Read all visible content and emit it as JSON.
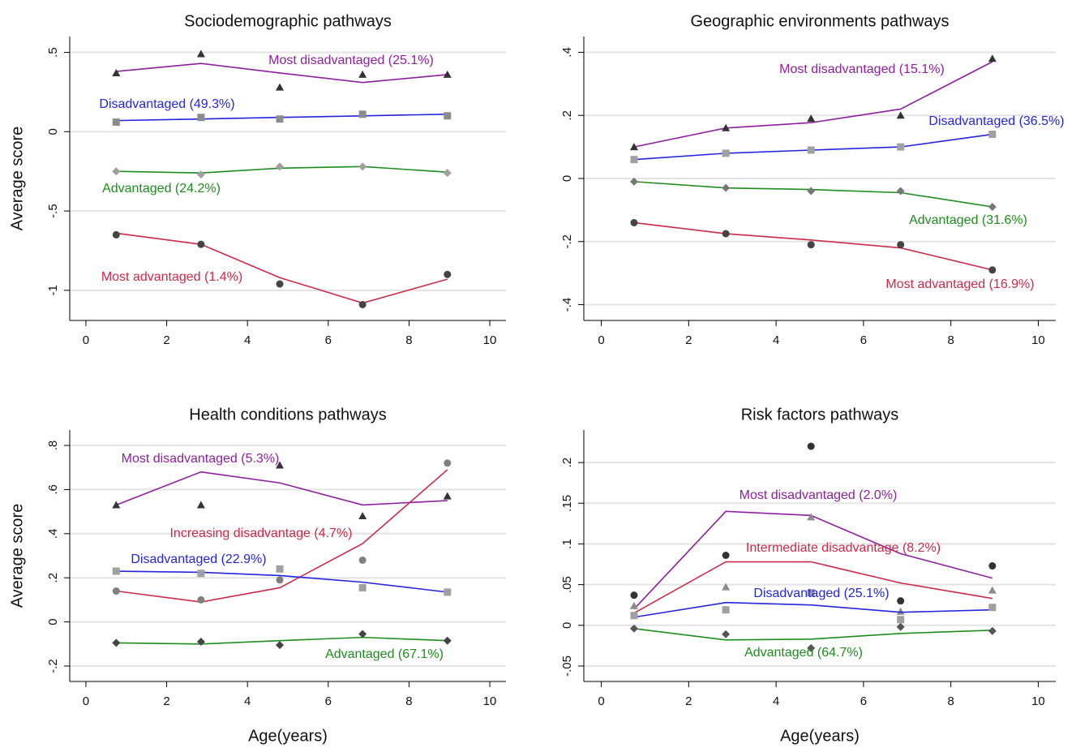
{
  "chart_data": [
    {
      "type": "line",
      "title": "Sociodemographic pathways",
      "ylabel": "Average score",
      "x": [
        0.75,
        2.85,
        4.8,
        6.85,
        8.95
      ],
      "xlim": [
        -0.4,
        10.4
      ],
      "xticks": [
        0,
        2,
        4,
        6,
        8,
        10
      ],
      "ylim": [
        -1.19,
        0.6
      ],
      "yticks": [
        {
          "value": 0.5,
          "label": ".5"
        },
        0,
        {
          "value": -0.5,
          "label": "-.5"
        },
        -1
      ],
      "grid": true,
      "series": [
        {
          "name": "Most disadvantaged (25.1%)",
          "color": "#8e1f9e",
          "values": [
            0.38,
            0.43,
            0.37,
            0.31,
            0.36
          ],
          "observed": [
            0.37,
            0.49,
            0.28,
            0.36,
            0.36
          ],
          "marker": "triangle",
          "marker_color": "#333333"
        },
        {
          "name": "Disadvantaged (49.3%)",
          "color": "#2424e0",
          "values": [
            0.07,
            0.08,
            0.09,
            0.1,
            0.11
          ],
          "observed": [
            0.06,
            0.09,
            0.08,
            0.11,
            0.1
          ],
          "marker": "square",
          "marker_color": "#8c8c8c"
        },
        {
          "name": "Advantaged (24.2%)",
          "color": "#1e8c1e",
          "values": [
            -0.25,
            -0.26,
            -0.23,
            -0.22,
            -0.255
          ],
          "observed": [
            -0.25,
            -0.27,
            -0.22,
            -0.22,
            -0.26
          ],
          "marker": "diamond",
          "marker_color": "#a0a0a0"
        },
        {
          "name": "Most advantaged (1.4%)",
          "color": "#cc2a4a",
          "values": [
            -0.64,
            -0.71,
            -0.92,
            -1.08,
            -0.93
          ],
          "observed": [
            -0.65,
            -0.71,
            -0.96,
            -1.09,
            -0.9
          ],
          "marker": "circle",
          "marker_color": "#444444"
        }
      ]
    },
    {
      "type": "line",
      "title": "Geographic environments pathways",
      "x": [
        0.75,
        2.85,
        4.8,
        6.85,
        8.95
      ],
      "xlim": [
        -0.4,
        10.4
      ],
      "xticks": [
        0,
        2,
        4,
        6,
        8,
        10
      ],
      "ylim": [
        -0.45,
        0.45
      ],
      "yticks": [
        {
          "value": 0.4,
          "label": ".4"
        },
        {
          "value": 0.2,
          "label": ".2"
        },
        0,
        {
          "value": -0.2,
          "label": "-.2"
        },
        {
          "value": -0.4,
          "label": "-.4"
        }
      ],
      "grid": true,
      "series": [
        {
          "name": "Most disadvantaged (15.1%)",
          "color": "#8e1f9e",
          "values": [
            0.1,
            0.16,
            0.177,
            0.22,
            0.37
          ],
          "observed": [
            0.1,
            0.16,
            0.19,
            0.2,
            0.38
          ],
          "marker": "triangle",
          "marker_color": "#333333"
        },
        {
          "name": "Disadvantaged (36.5%)",
          "color": "#2424e0",
          "values": [
            0.06,
            0.08,
            0.09,
            0.1,
            0.14
          ],
          "observed": [
            0.06,
            0.08,
            0.09,
            0.1,
            0.14
          ],
          "marker": "square",
          "marker_color": "#a0a0a0"
        },
        {
          "name": "Advantaged (31.6%)",
          "color": "#1e8c1e",
          "values": [
            -0.01,
            -0.03,
            -0.035,
            -0.045,
            -0.09
          ],
          "observed": [
            -0.01,
            -0.03,
            -0.04,
            -0.04,
            -0.09
          ],
          "marker": "diamond",
          "marker_color": "#777777"
        },
        {
          "name": "Most advantaged (16.9%)",
          "color": "#cc2a4a",
          "values": [
            -0.14,
            -0.175,
            -0.195,
            -0.22,
            -0.29
          ],
          "observed": [
            -0.14,
            -0.175,
            -0.21,
            -0.21,
            -0.29
          ],
          "marker": "circle",
          "marker_color": "#444444"
        }
      ]
    },
    {
      "type": "line",
      "title": "Health conditions pathways",
      "ylabel": "Average score",
      "xlabel": "Age(years)",
      "x": [
        0.75,
        2.85,
        4.8,
        6.85,
        8.95
      ],
      "xlim": [
        -0.4,
        10.4
      ],
      "xticks": [
        0,
        2,
        4,
        6,
        8,
        10
      ],
      "ylim": [
        -0.27,
        0.87
      ],
      "yticks": [
        {
          "value": 0.8,
          "label": ".8"
        },
        {
          "value": 0.6,
          "label": ".6"
        },
        {
          "value": 0.4,
          "label": ".4"
        },
        {
          "value": 0.2,
          "label": ".2"
        },
        0,
        {
          "value": -0.2,
          "label": "-.2"
        }
      ],
      "grid": true,
      "series": [
        {
          "name": "Most disadvantaged (5.3%)",
          "color": "#8e1f9e",
          "values": [
            0.53,
            0.68,
            0.63,
            0.53,
            0.55
          ],
          "observed": [
            0.53,
            0.53,
            0.71,
            0.48,
            0.57
          ],
          "marker": "triangle",
          "marker_color": "#333333"
        },
        {
          "name": "Increasing disadvantage (4.7%)",
          "color": "#cc2a4a",
          "values": [
            0.14,
            0.09,
            0.155,
            0.355,
            0.69
          ],
          "observed": [
            0.14,
            0.1,
            0.19,
            0.28,
            0.72
          ],
          "marker": "circle",
          "marker_color": "#808080"
        },
        {
          "name": "Disadvantaged (22.9%)",
          "color": "#2424e0",
          "values": [
            0.23,
            0.225,
            0.21,
            0.18,
            0.135
          ],
          "observed": [
            0.23,
            0.22,
            0.24,
            0.155,
            0.135
          ],
          "marker": "square",
          "marker_color": "#a0a0a0"
        },
        {
          "name": "Advantaged (67.1%)",
          "color": "#1e8c1e",
          "values": [
            -0.095,
            -0.1,
            -0.085,
            -0.07,
            -0.085
          ],
          "observed": [
            -0.095,
            -0.09,
            -0.105,
            -0.055,
            -0.085
          ],
          "marker": "diamond",
          "marker_color": "#444444"
        }
      ]
    },
    {
      "type": "line",
      "title": "Risk factors pathways",
      "xlabel": "Age(years)",
      "x": [
        0.75,
        2.85,
        4.8,
        6.85,
        8.95
      ],
      "xlim": [
        -0.4,
        10.4
      ],
      "xticks": [
        0,
        2,
        4,
        6,
        8,
        10
      ],
      "ylim": [
        -0.069,
        0.24
      ],
      "yticks": [
        {
          "value": 0.2,
          "label": ".2"
        },
        {
          "value": 0.15,
          "label": ".15"
        },
        {
          "value": 0.1,
          "label": ".1"
        },
        {
          "value": 0.05,
          "label": ".05"
        },
        0,
        {
          "value": -0.05,
          "label": "-.05"
        }
      ],
      "grid": true,
      "series": [
        {
          "name": "Most disadvantaged (2.0%)",
          "color": "#8e1f9e",
          "values": [
            0.02,
            0.14,
            0.135,
            0.088,
            0.058
          ],
          "observed": [
            0.024,
            0.047,
            0.133,
            0.017,
            0.043
          ],
          "marker": "triangle",
          "marker_color": "#8c8c8c"
        },
        {
          "name": "Intermediate disadvantage (8.2%)",
          "color": "#cc2a4a",
          "values": [
            0.015,
            0.078,
            0.078,
            0.052,
            0.033
          ],
          "observed": [
            0.037,
            0.086,
            0.22,
            0.03,
            0.073
          ],
          "marker": "circle",
          "marker_color": "#333333"
        },
        {
          "name": "Disadvantaged (25.1%)",
          "color": "#2424e0",
          "values": [
            0.01,
            0.028,
            0.025,
            0.016,
            0.019
          ],
          "observed": [
            0.012,
            0.019,
            0.04,
            0.007,
            0.022
          ],
          "marker": "square",
          "marker_color": "#a0a0a0"
        },
        {
          "name": "Advantaged (64.7%)",
          "color": "#1e8c1e",
          "values": [
            -0.004,
            -0.018,
            -0.017,
            -0.01,
            -0.006
          ],
          "observed": [
            -0.004,
            -0.011,
            -0.028,
            -0.002,
            -0.007
          ],
          "marker": "diamond",
          "marker_color": "#555555"
        }
      ]
    }
  ]
}
